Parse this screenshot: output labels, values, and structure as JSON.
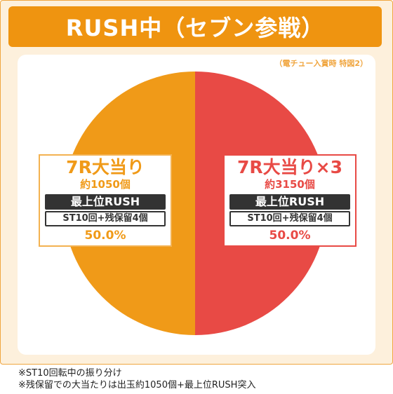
{
  "chart_data": {
    "type": "pie",
    "title": "RUSH中（セブン参戦）",
    "note": "（電チュー入賞時 特図2）",
    "slices": [
      {
        "name": "7R大当り",
        "value": 50.0,
        "value_label": "50.0%",
        "payout": "約1050個",
        "rush": "最上位RUSH",
        "st": "ST10回+残保留4個",
        "color": "#f09a18"
      },
      {
        "name": "7R大当り×3",
        "value": 50.0,
        "value_label": "50.0%",
        "payout": "約3150個",
        "rush": "最上位RUSH",
        "st": "ST10回+残保留4個",
        "color": "#e84a45"
      }
    ]
  },
  "footnotes": [
    "※ST10回転中の振り分け",
    "※残保留での大当たりは出玉約1050個+最上位RUSH突入"
  ]
}
